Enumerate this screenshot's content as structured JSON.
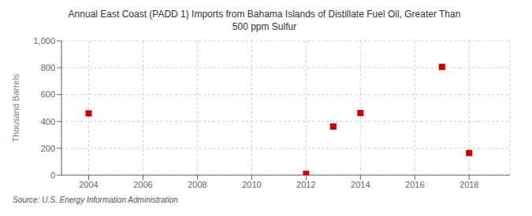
{
  "chart_data": {
    "type": "scatter",
    "title": "Annual East Coast (PADD 1) Imports from Bahama Islands of Distillate Fuel Oil, Greater Than\n500 ppm Sulfur",
    "y_label": "Thousand Barrels",
    "annotations": [
      "Source: U.S. Energy Information Administration"
    ],
    "x": [
      2004,
      2012,
      2013,
      2014,
      2017,
      2018
    ],
    "values": [
      460,
      10,
      362,
      463,
      806,
      165
    ],
    "color": "#cc0000",
    "marker": "square",
    "xlim": [
      2003.0,
      2019.5
    ],
    "ylim": [
      0,
      1000
    ],
    "xticks": [
      2004,
      2006,
      2008,
      2010,
      2012,
      2014,
      2016,
      2018
    ],
    "yticks": [
      0,
      200,
      400,
      600,
      800,
      {
        "value": 1000,
        "label": "1,000"
      }
    ],
    "grid": true
  }
}
